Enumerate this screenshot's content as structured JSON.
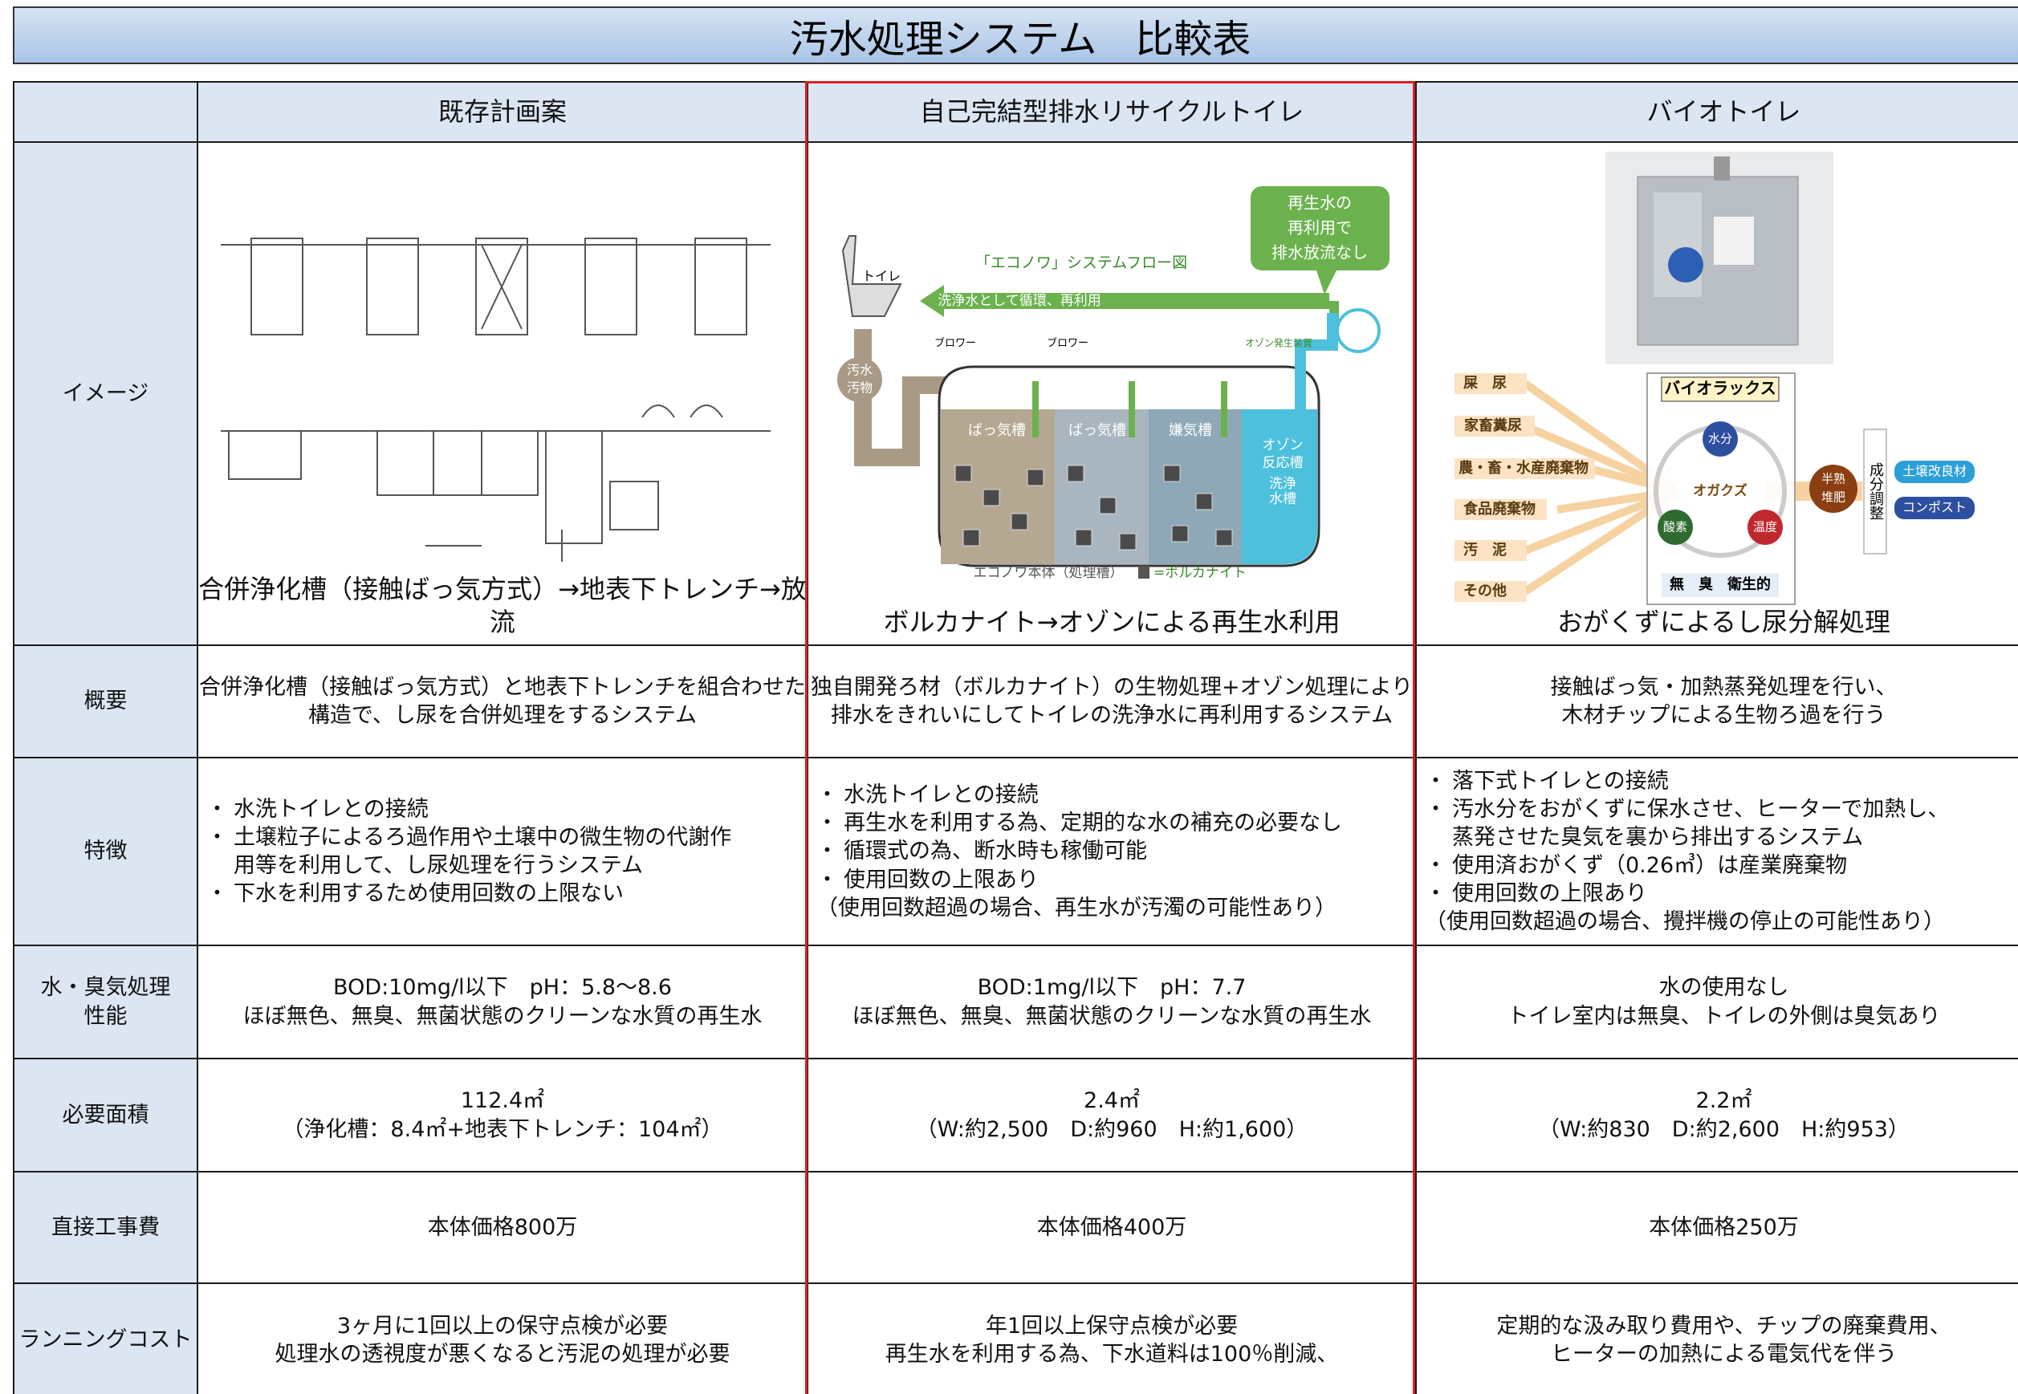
{
  "header": {
    "title": "汚水処理システム　比較表"
  },
  "table": {
    "columns": [
      "既存計画案",
      "自己完結型排水リサイクルトイレ",
      "バイオトイレ"
    ],
    "rows": [
      {
        "label": "イメージ",
        "cells": [
          "合併浄化槽（接触ばっ気方式）→地表下トレンチ→放流",
          "ボルカナイト→オゾンによる再生水利用",
          "おがくずによるし尿分解処理"
        ]
      },
      {
        "label": "概要",
        "cells": [
          [
            "合併浄化槽（接触ばっ気方式）と地表下トレンチを組合わせた",
            "構造で、し尿を合併処理をするシステム"
          ],
          [
            "独自開発ろ材（ボルカナイト）の生物処理+オゾン処理により",
            "排水をきれいにしてトイレの洗浄水に再利用するシステム"
          ],
          [
            "接触ばっ気・加熱蒸発処理を行い、",
            "木材チップによる生物ろ過を行う"
          ]
        ]
      },
      {
        "label": "特徴",
        "cells": [
          {
            "items": [
              [
                "水洗トイレとの接続"
              ],
              [
                "土壌粒子によるろ過作用や土壌中の微生物の代謝作",
                "用等を利用して、し尿処理を行うシステム"
              ],
              [
                "下水を利用するため使用回数の上限ない"
              ]
            ]
          },
          {
            "items": [
              [
                "水洗トイレとの接続"
              ],
              [
                "再生水を利用する為、定期的な水の補充の必要なし"
              ],
              [
                "循環式の為、断水時も稼働可能"
              ],
              [
                "使用回数の上限あり"
              ]
            ],
            "note": "（使用回数超過の場合、再生水が汚濁の可能性あり）"
          },
          {
            "items": [
              [
                "落下式トイレとの接続"
              ],
              [
                "汚水分をおがくずに保水させ、ヒーターで加熱し、",
                "蒸発させた臭気を裏から排出するシステム"
              ],
              [
                "使用済おがくず（0.26㎥）は産業廃棄物"
              ],
              [
                "使用回数の上限あり"
              ]
            ],
            "note": "（使用回数超過の場合、攪拌機の停止の可能性あり）"
          }
        ]
      },
      {
        "label": [
          "水・臭気処理",
          "性能"
        ],
        "cells": [
          [
            "BOD:10mg/l以下　pH：5.8～8.6",
            "ほぼ無色、無臭、無菌状態のクリーンな水質の再生水"
          ],
          [
            "BOD:1mg/l以下　pH：7.7",
            "ほぼ無色、無臭、無菌状態のクリーンな水質の再生水"
          ],
          [
            "水の使用なし",
            "トイレ室内は無臭、トイレの外側は臭気あり"
          ]
        ]
      },
      {
        "label": "必要面積",
        "cells": [
          [
            "112.4㎡",
            "（浄化槽：8.4㎡+地表下トレンチ：104㎡）"
          ],
          [
            "2.4㎡",
            "（W:約2,500　D:約960　H:約1,600）"
          ],
          [
            "2.2㎡",
            "（W:約830　D:約2,600　H:約953）"
          ]
        ]
      },
      {
        "label": "直接工事費",
        "cells": [
          [
            "本体価格800万"
          ],
          [
            "本体価格400万"
          ],
          [
            "本体価格250万"
          ]
        ]
      },
      {
        "label": "ランニングコスト",
        "cells": [
          [
            "3ヶ月に1回以上の保守点検が必要",
            "処理水の透視度が悪くなると汚泥の処理が必要"
          ],
          [
            "年1回以上保守点検が必要",
            "再生水を利用する為、下水道料は100％削減、"
          ],
          [
            "定期的な汲み取り費用や、チップの廃棄費用、",
            "ヒーターの加熱による電気代を伴う"
          ]
        ]
      }
    ]
  },
  "diagram_center": {
    "bubble": [
      "再生水の",
      "再利用で",
      "排水放流なし"
    ],
    "flow_title": "「エコノワ」システムフロー図",
    "loop": "洗浄水として循環、再利用",
    "toilet": "トイレ",
    "sewage": [
      "汚水",
      "汚物"
    ],
    "blowers": [
      "ブロワー",
      "ブロワー"
    ],
    "ozone": "オゾン発生装置",
    "tanks": [
      "ばっ気槽",
      "ばっ気槽",
      "嫌気槽"
    ],
    "ozone_tank": [
      "オゾン",
      "反応槽",
      "洗浄",
      "水槽"
    ],
    "body": "エコノワ本体（処理槽）",
    "media": "=ボルカナイト"
  },
  "diagram_right": {
    "inputs": [
      "屎　尿",
      "家畜糞尿",
      "農・畜・水産廃棄物",
      "食品廃棄物",
      "汚　泥",
      "その他"
    ],
    "brand": "バイオラックス",
    "water": "水分",
    "sawdust": "オガクズ",
    "oxygen": "酸素",
    "temp": "温度",
    "bottom": "無　臭　衛生的",
    "compost_half": [
      "半熟",
      "堆肥"
    ],
    "adjust": "成分調整",
    "outputs": [
      "土壌改良材",
      "コンポスト"
    ]
  }
}
